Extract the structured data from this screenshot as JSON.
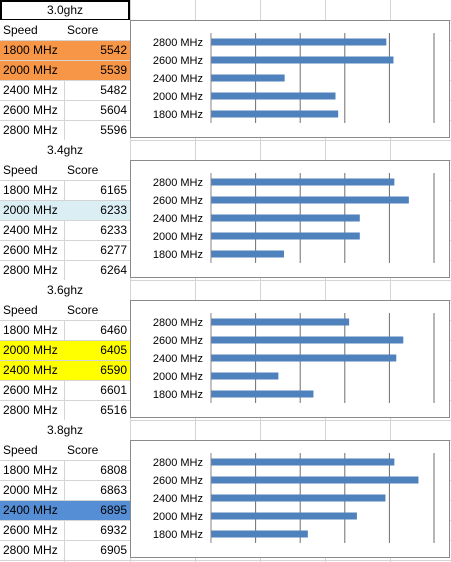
{
  "colors": {
    "gridline": "#d4d4d4",
    "bar": "#4f81bd",
    "orange": "#f79646",
    "lightblue": "#dbeef4",
    "yellow": "#ffff00",
    "blue": "#558ed5"
  },
  "headers": {
    "speed": "Speed",
    "score": "Score"
  },
  "blocks": [
    {
      "title": "3.0ghz",
      "rows": [
        {
          "speed": "1800 MHz",
          "score": "5542",
          "highlight": "orange"
        },
        {
          "speed": "2000 MHz",
          "score": "5539",
          "highlight": "orange"
        },
        {
          "speed": "2400 MHz",
          "score": "5482"
        },
        {
          "speed": "2600 MHz",
          "score": "5604"
        },
        {
          "speed": "2800 MHz",
          "score": "5596"
        }
      ]
    },
    {
      "title": "3.4ghz",
      "rows": [
        {
          "speed": "1800 MHz",
          "score": "6165"
        },
        {
          "speed": "2000 MHz",
          "score": "6233",
          "highlight": "lightblue"
        },
        {
          "speed": "2400 MHz",
          "score": "6233"
        },
        {
          "speed": "2600 MHz",
          "score": "6277"
        },
        {
          "speed": "2800 MHz",
          "score": "6264"
        }
      ]
    },
    {
      "title": "3.6ghz",
      "rows": [
        {
          "speed": "1800 MHz",
          "score": "6460"
        },
        {
          "speed": "2000 MHz",
          "score": "6405",
          "highlight": "yellow"
        },
        {
          "speed": "2400 MHz",
          "score": "6590",
          "highlight": "yellow"
        },
        {
          "speed": "2600 MHz",
          "score": "6601"
        },
        {
          "speed": "2800 MHz",
          "score": "6516"
        }
      ]
    },
    {
      "title": "3.8ghz",
      "rows": [
        {
          "speed": "1800 MHz",
          "score": "6808"
        },
        {
          "speed": "2000 MHz",
          "score": "6863"
        },
        {
          "speed": "2400 MHz",
          "score": "6895",
          "highlight": "blue"
        },
        {
          "speed": "2600 MHz",
          "score": "6932"
        },
        {
          "speed": "2800 MHz",
          "score": "6905"
        }
      ]
    }
  ],
  "chart_data": [
    {
      "type": "bar",
      "orientation": "horizontal",
      "categories": [
        "2800 MHz",
        "2600 MHz",
        "2400 MHz",
        "2000 MHz",
        "1800 MHz"
      ],
      "values": [
        5596,
        5604,
        5482,
        5539,
        5542
      ],
      "xlim": [
        5400,
        5650
      ]
    },
    {
      "type": "bar",
      "orientation": "horizontal",
      "categories": [
        "2800 MHz",
        "2600 MHz",
        "2400 MHz",
        "2000 MHz",
        "1800 MHz"
      ],
      "values": [
        6264,
        6277,
        6233,
        6233,
        6165
      ],
      "xlim": [
        6100,
        6300
      ]
    },
    {
      "type": "bar",
      "orientation": "horizontal",
      "categories": [
        "2800 MHz",
        "2600 MHz",
        "2400 MHz",
        "2000 MHz",
        "1800 MHz"
      ],
      "values": [
        6516,
        6601,
        6590,
        6405,
        6460
      ],
      "xlim": [
        6300,
        6650
      ]
    },
    {
      "type": "bar",
      "orientation": "horizontal",
      "categories": [
        "2800 MHz",
        "2600 MHz",
        "2400 MHz",
        "2000 MHz",
        "1800 MHz"
      ],
      "values": [
        6905,
        6932,
        6895,
        6863,
        6808
      ],
      "xlim": [
        6700,
        6950
      ]
    }
  ]
}
